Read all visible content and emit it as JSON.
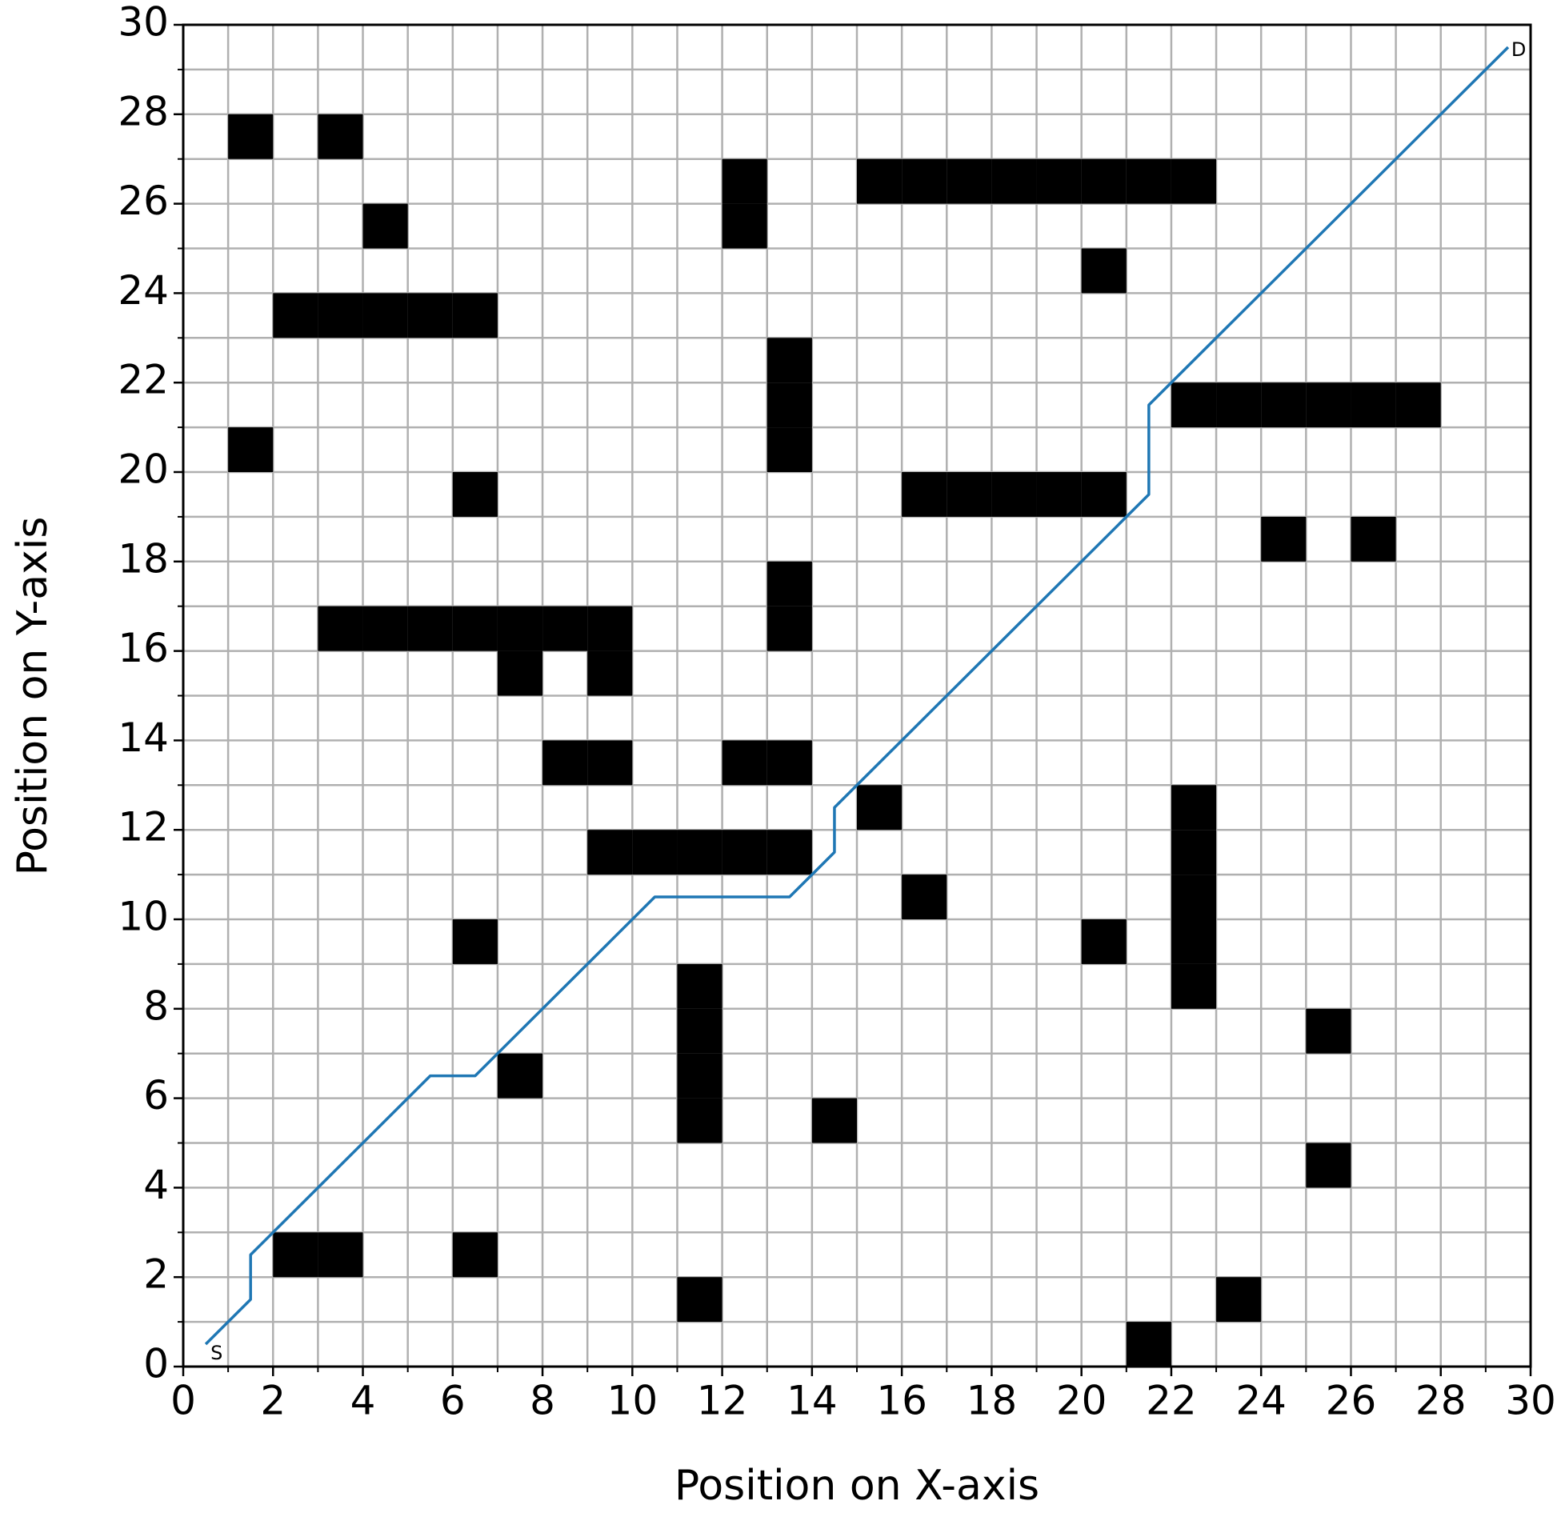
{
  "chart_data": {
    "type": "grid-path",
    "x_label": "Position on X-axis",
    "y_label": "Position on Y-axis",
    "xlim": [
      0,
      30
    ],
    "ylim": [
      0,
      30
    ],
    "xticks": [
      0,
      2,
      4,
      6,
      8,
      10,
      12,
      14,
      16,
      18,
      20,
      22,
      24,
      26,
      28,
      30
    ],
    "yticks": [
      0,
      2,
      4,
      6,
      8,
      10,
      12,
      14,
      16,
      18,
      20,
      22,
      24,
      26,
      28,
      30
    ],
    "xticks_minor": [
      1,
      3,
      5,
      7,
      9,
      11,
      13,
      15,
      17,
      19,
      21,
      23,
      25,
      27,
      29
    ],
    "yticks_minor": [
      1,
      3,
      5,
      7,
      9,
      11,
      13,
      15,
      17,
      19,
      21,
      23,
      25,
      27,
      29
    ],
    "grid": true,
    "obstacle_color": "#000000",
    "obstacles": {
      "x": [
        1,
        3,
        4,
        2,
        3,
        4,
        5,
        6,
        1,
        6,
        3,
        4,
        5,
        6,
        7,
        8,
        9,
        7,
        9,
        8,
        9,
        12,
        13,
        9,
        10,
        11,
        12,
        13,
        6,
        11,
        11,
        11,
        11,
        7,
        14,
        2,
        3,
        6,
        11,
        21,
        23,
        25,
        25,
        20,
        22,
        22,
        22,
        22,
        22,
        16,
        15,
        13,
        13,
        13,
        13,
        13,
        16,
        17,
        18,
        19,
        20,
        24,
        26,
        22,
        23,
        24,
        25,
        26,
        27,
        20,
        12,
        12,
        15,
        16,
        17,
        18,
        19,
        20,
        21,
        22
      ],
      "y": [
        27,
        27,
        25,
        23,
        23,
        23,
        23,
        23,
        20,
        19,
        16,
        16,
        16,
        16,
        16,
        16,
        16,
        15,
        15,
        13,
        13,
        13,
        13,
        11,
        11,
        11,
        11,
        11,
        9,
        5,
        6,
        7,
        8,
        6,
        5,
        2,
        2,
        2,
        1,
        0,
        1,
        4,
        7,
        9,
        8,
        9,
        10,
        11,
        12,
        10,
        12,
        16,
        17,
        20,
        21,
        22,
        19,
        19,
        19,
        19,
        19,
        18,
        18,
        21,
        21,
        21,
        21,
        21,
        21,
        24,
        25,
        26,
        26,
        26,
        26,
        26,
        26,
        26,
        26,
        26
      ]
    },
    "path": {
      "color": "#1f77b4",
      "x": [
        0.5,
        1.5,
        1.5,
        5.5,
        6.5,
        10.5,
        13.5,
        14.5,
        14.5,
        21.5,
        21.5,
        29.5
      ],
      "y": [
        0.5,
        1.5,
        2.5,
        6.5,
        6.5,
        10.5,
        10.5,
        11.5,
        12.5,
        19.5,
        21.5,
        29.5
      ]
    },
    "annotations": [
      "S",
      "D"
    ]
  }
}
